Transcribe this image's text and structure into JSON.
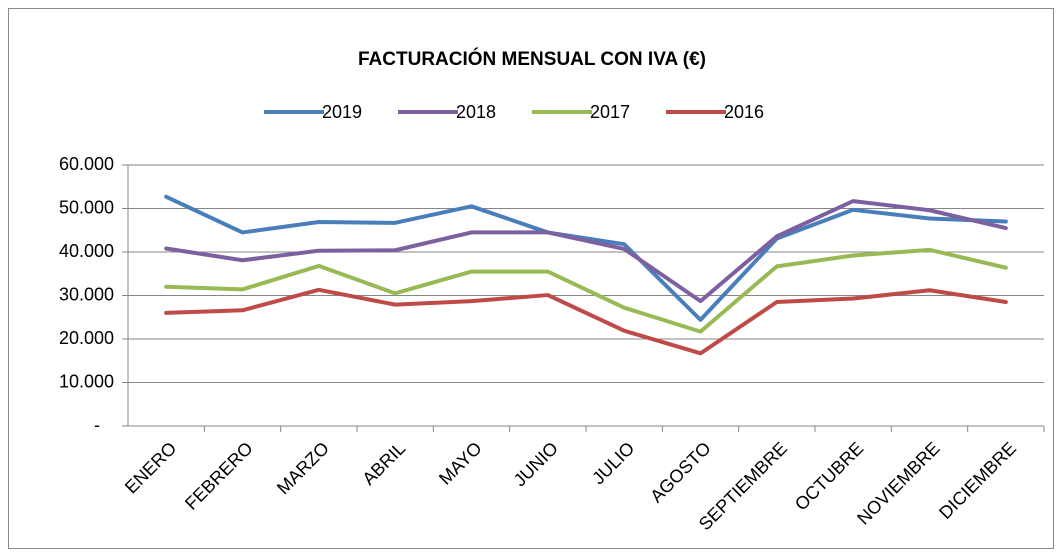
{
  "chart_data": {
    "type": "line",
    "title": "FACTURACIÓN MENSUAL CON IVA (€)",
    "categories": [
      "ENERO",
      "FEBRERO",
      "MARZO",
      "ABRIL",
      "MAYO",
      "JUNIO",
      "JULIO",
      "AGOSTO",
      "SEPTIEMBRE",
      "OCTUBRE",
      "NOVIEMBRE",
      "DICIEMBRE"
    ],
    "series": [
      {
        "name": "2019",
        "color": "#4a7ebb",
        "values": [
          52700,
          44500,
          46900,
          46700,
          50500,
          44500,
          41800,
          24400,
          43100,
          49700,
          47700,
          47000
        ]
      },
      {
        "name": "2018",
        "color": "#7d60a0",
        "values": [
          40800,
          38100,
          40300,
          40400,
          44500,
          44500,
          40700,
          28700,
          43600,
          51700,
          49600,
          45500
        ]
      },
      {
        "name": "2017",
        "color": "#98b954",
        "values": [
          32000,
          31400,
          36800,
          30500,
          35500,
          35500,
          27200,
          21700,
          36700,
          39200,
          40500,
          36400
        ]
      },
      {
        "name": "2016",
        "color": "#be4b48",
        "values": [
          26000,
          26600,
          31300,
          27900,
          28700,
          30100,
          21900,
          16700,
          28500,
          29300,
          31200,
          28500
        ]
      }
    ],
    "ylim": [
      0,
      60000
    ],
    "yticks": [
      {
        "value": 0,
        "label": "-"
      },
      {
        "value": 10000,
        "label": "10.000"
      },
      {
        "value": 20000,
        "label": "20.000"
      },
      {
        "value": 30000,
        "label": "30.000"
      },
      {
        "value": 40000,
        "label": "40.000"
      },
      {
        "value": 50000,
        "label": "50.000"
      },
      {
        "value": 60000,
        "label": "60.000"
      }
    ],
    "grid": true,
    "legend": "top"
  }
}
